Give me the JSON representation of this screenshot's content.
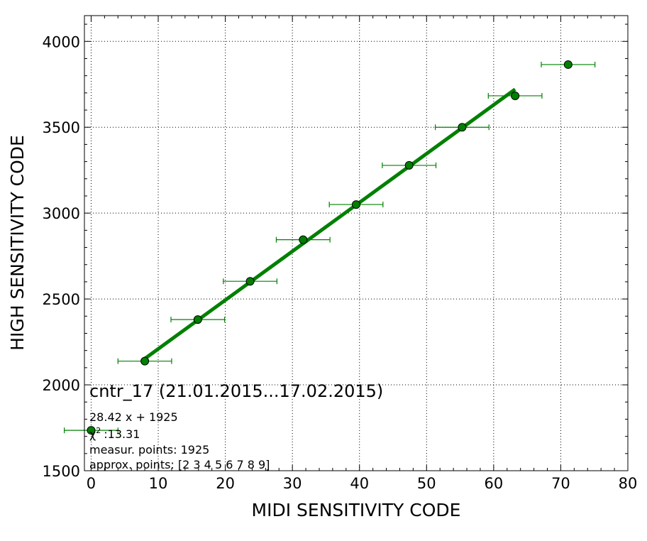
{
  "chart_data": {
    "type": "scatter",
    "xlabel": "MIDI SENSITIVITY CODE",
    "ylabel": "HIGH SENSITIVITY CODE",
    "xlim": [
      -1,
      80
    ],
    "ylim": [
      1500,
      4150
    ],
    "xticks": [
      0,
      10,
      20,
      30,
      40,
      50,
      60,
      70,
      80
    ],
    "yticks": [
      1500,
      2000,
      2500,
      3000,
      3500,
      4000
    ],
    "grid": true,
    "colors": {
      "marker": "#008000",
      "fit_line": "#008000",
      "errorbar": "#008000"
    },
    "points": [
      {
        "x": 0,
        "y": 1735,
        "xerr": 4
      },
      {
        "x": 8,
        "y": 2138,
        "xerr": 4
      },
      {
        "x": 15.9,
        "y": 2380,
        "xerr": 4
      },
      {
        "x": 23.7,
        "y": 2603,
        "xerr": 4
      },
      {
        "x": 31.6,
        "y": 2845,
        "xerr": 4
      },
      {
        "x": 39.5,
        "y": 3050,
        "xerr": 4
      },
      {
        "x": 47.4,
        "y": 3278,
        "xerr": 4
      },
      {
        "x": 55.3,
        "y": 3500,
        "xerr": 4
      },
      {
        "x": 63.2,
        "y": 3683,
        "xerr": 4
      },
      {
        "x": 71.1,
        "y": 3865,
        "xerr": 4
      }
    ],
    "fit": {
      "slope": 28.42,
      "intercept": 1925,
      "x_from": 8,
      "x_to": 63.2
    },
    "annotations": {
      "title": "cntr_17 (21.01.2015...17.02.2015)",
      "equation": "28.42 x + 1925",
      "chi_symbol": "χ",
      "chi_exp": "2",
      "chi_value": ":13.31",
      "measur_points": "measur. points: 1925",
      "approx_points": "approx. points: [2 3 4 5 6 7 8 9]"
    }
  }
}
